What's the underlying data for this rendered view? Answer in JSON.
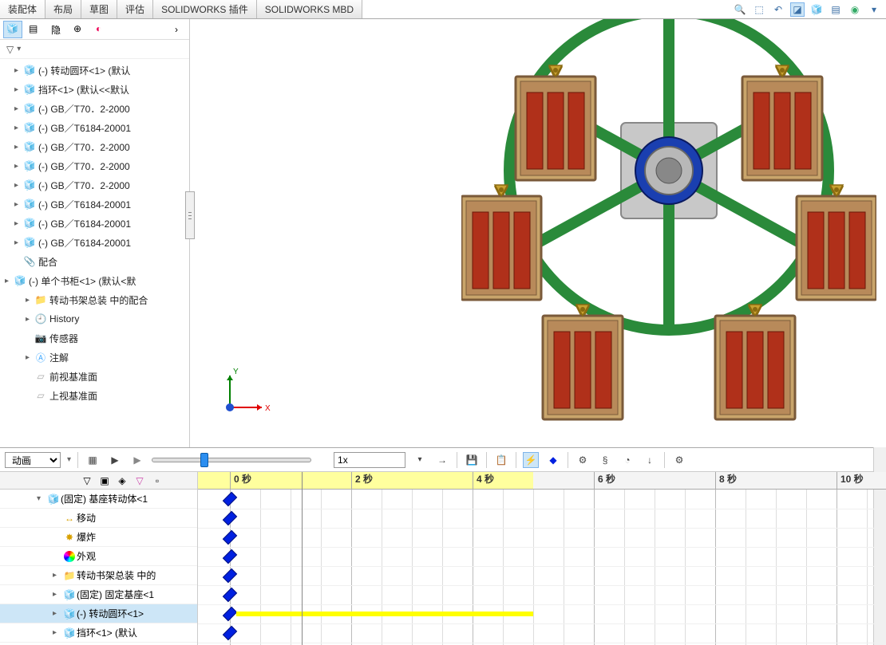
{
  "tabs": {
    "items": [
      {
        "label": "装配体",
        "active": true
      },
      {
        "label": "布局",
        "active": false
      },
      {
        "label": "草图",
        "active": false
      },
      {
        "label": "评估",
        "active": false
      },
      {
        "label": "SOLIDWORKS 插件",
        "active": false
      },
      {
        "label": "SOLIDWORKS MBD",
        "active": false
      }
    ]
  },
  "tree": {
    "items": [
      {
        "label": "(-) 转动圆环<1> (默认",
        "icon": "part",
        "arrow": "▸",
        "indent": 1
      },
      {
        "label": "挡环<1> (默认<<默认",
        "icon": "part",
        "arrow": "▸",
        "indent": 1
      },
      {
        "label": "(-) GB／T70．2-2000",
        "icon": "part",
        "arrow": "▸",
        "indent": 1
      },
      {
        "label": "(-) GB／T6184-20001",
        "icon": "part",
        "arrow": "▸",
        "indent": 1
      },
      {
        "label": "(-) GB／T70．2-2000",
        "icon": "part",
        "arrow": "▸",
        "indent": 1
      },
      {
        "label": "(-) GB／T70．2-2000",
        "icon": "part",
        "arrow": "▸",
        "indent": 1
      },
      {
        "label": "(-) GB／T70．2-2000",
        "icon": "part",
        "arrow": "▸",
        "indent": 1
      },
      {
        "label": "(-) GB／T6184-20001",
        "icon": "part",
        "arrow": "▸",
        "indent": 1
      },
      {
        "label": "(-) GB／T6184-20001",
        "icon": "part",
        "arrow": "▸",
        "indent": 1
      },
      {
        "label": "(-) GB／T6184-20001",
        "icon": "part",
        "arrow": "▸",
        "indent": 1
      },
      {
        "label": "配合",
        "icon": "mates",
        "arrow": "",
        "indent": 1
      },
      {
        "label": "(-) 单个书柜<1> (默认<默",
        "icon": "asm-red",
        "arrow": "▸",
        "indent": 0,
        "toplevel": true
      },
      {
        "label": "转动书架总装 中的配合",
        "icon": "folder",
        "arrow": "▸",
        "indent": 2
      },
      {
        "label": "History",
        "icon": "history",
        "arrow": "▸",
        "indent": 2
      },
      {
        "label": "传感器",
        "icon": "sensor",
        "arrow": "",
        "indent": 2
      },
      {
        "label": "注解",
        "icon": "annot",
        "arrow": "▸",
        "indent": 2
      },
      {
        "label": "前视基准面",
        "icon": "plane",
        "arrow": "",
        "indent": 2
      },
      {
        "label": "上视基准面",
        "icon": "plane",
        "arrow": "",
        "indent": 2
      }
    ]
  },
  "timeline": {
    "mode_label": "动画",
    "speed_label": "1x",
    "ticks": [
      {
        "label": "0 秒",
        "pos": 40,
        "yellow": true
      },
      {
        "label": "2 秒",
        "pos": 192,
        "yellow": true
      },
      {
        "label": "4 秒",
        "pos": 344,
        "yellow": true
      },
      {
        "label": "6 秒",
        "pos": 496,
        "yellow": false
      },
      {
        "label": "8 秒",
        "pos": 648,
        "yellow": false
      },
      {
        "label": "10 秒",
        "pos": 800,
        "yellow": false
      }
    ],
    "yellow_end": 420,
    "playhead": 130,
    "rows": [
      {
        "label": "(固定) 基座转动体<1",
        "icon": "asm",
        "arrow": "▾",
        "indent": 1,
        "key": 40
      },
      {
        "label": "移动",
        "icon": "move",
        "arrow": "",
        "indent": 2,
        "key": 40
      },
      {
        "label": "爆炸",
        "icon": "explode",
        "arrow": "",
        "indent": 2,
        "key": 40
      },
      {
        "label": "外观",
        "icon": "appear",
        "arrow": "",
        "indent": 2,
        "key": 40
      },
      {
        "label": "转动书架总装 中的",
        "icon": "folder",
        "arrow": "▸",
        "indent": 2,
        "key": 40
      },
      {
        "label": "(固定) 固定基座<1",
        "icon": "part",
        "arrow": "▸",
        "indent": 2,
        "key": 40
      },
      {
        "label": "(-) 转动圆环<1>",
        "icon": "part",
        "arrow": "▸",
        "indent": 2,
        "key": 40,
        "sel": true,
        "bar": {
          "from": 48,
          "to": 420
        }
      },
      {
        "label": "挡环<1> (默认",
        "icon": "part",
        "arrow": "▸",
        "indent": 2,
        "key": 40
      }
    ]
  },
  "triad": {
    "x_label": "X",
    "y_label": "Y"
  },
  "colors": {
    "wheel_green": "#2a8a3a",
    "wood": "#c9a56b",
    "wood_dark": "#7a5a3a",
    "panel_red": "#b0301a",
    "hub_blue": "#1a3fb0",
    "hub_grey": "#b8b8b8",
    "hanger": "#c8a030"
  }
}
